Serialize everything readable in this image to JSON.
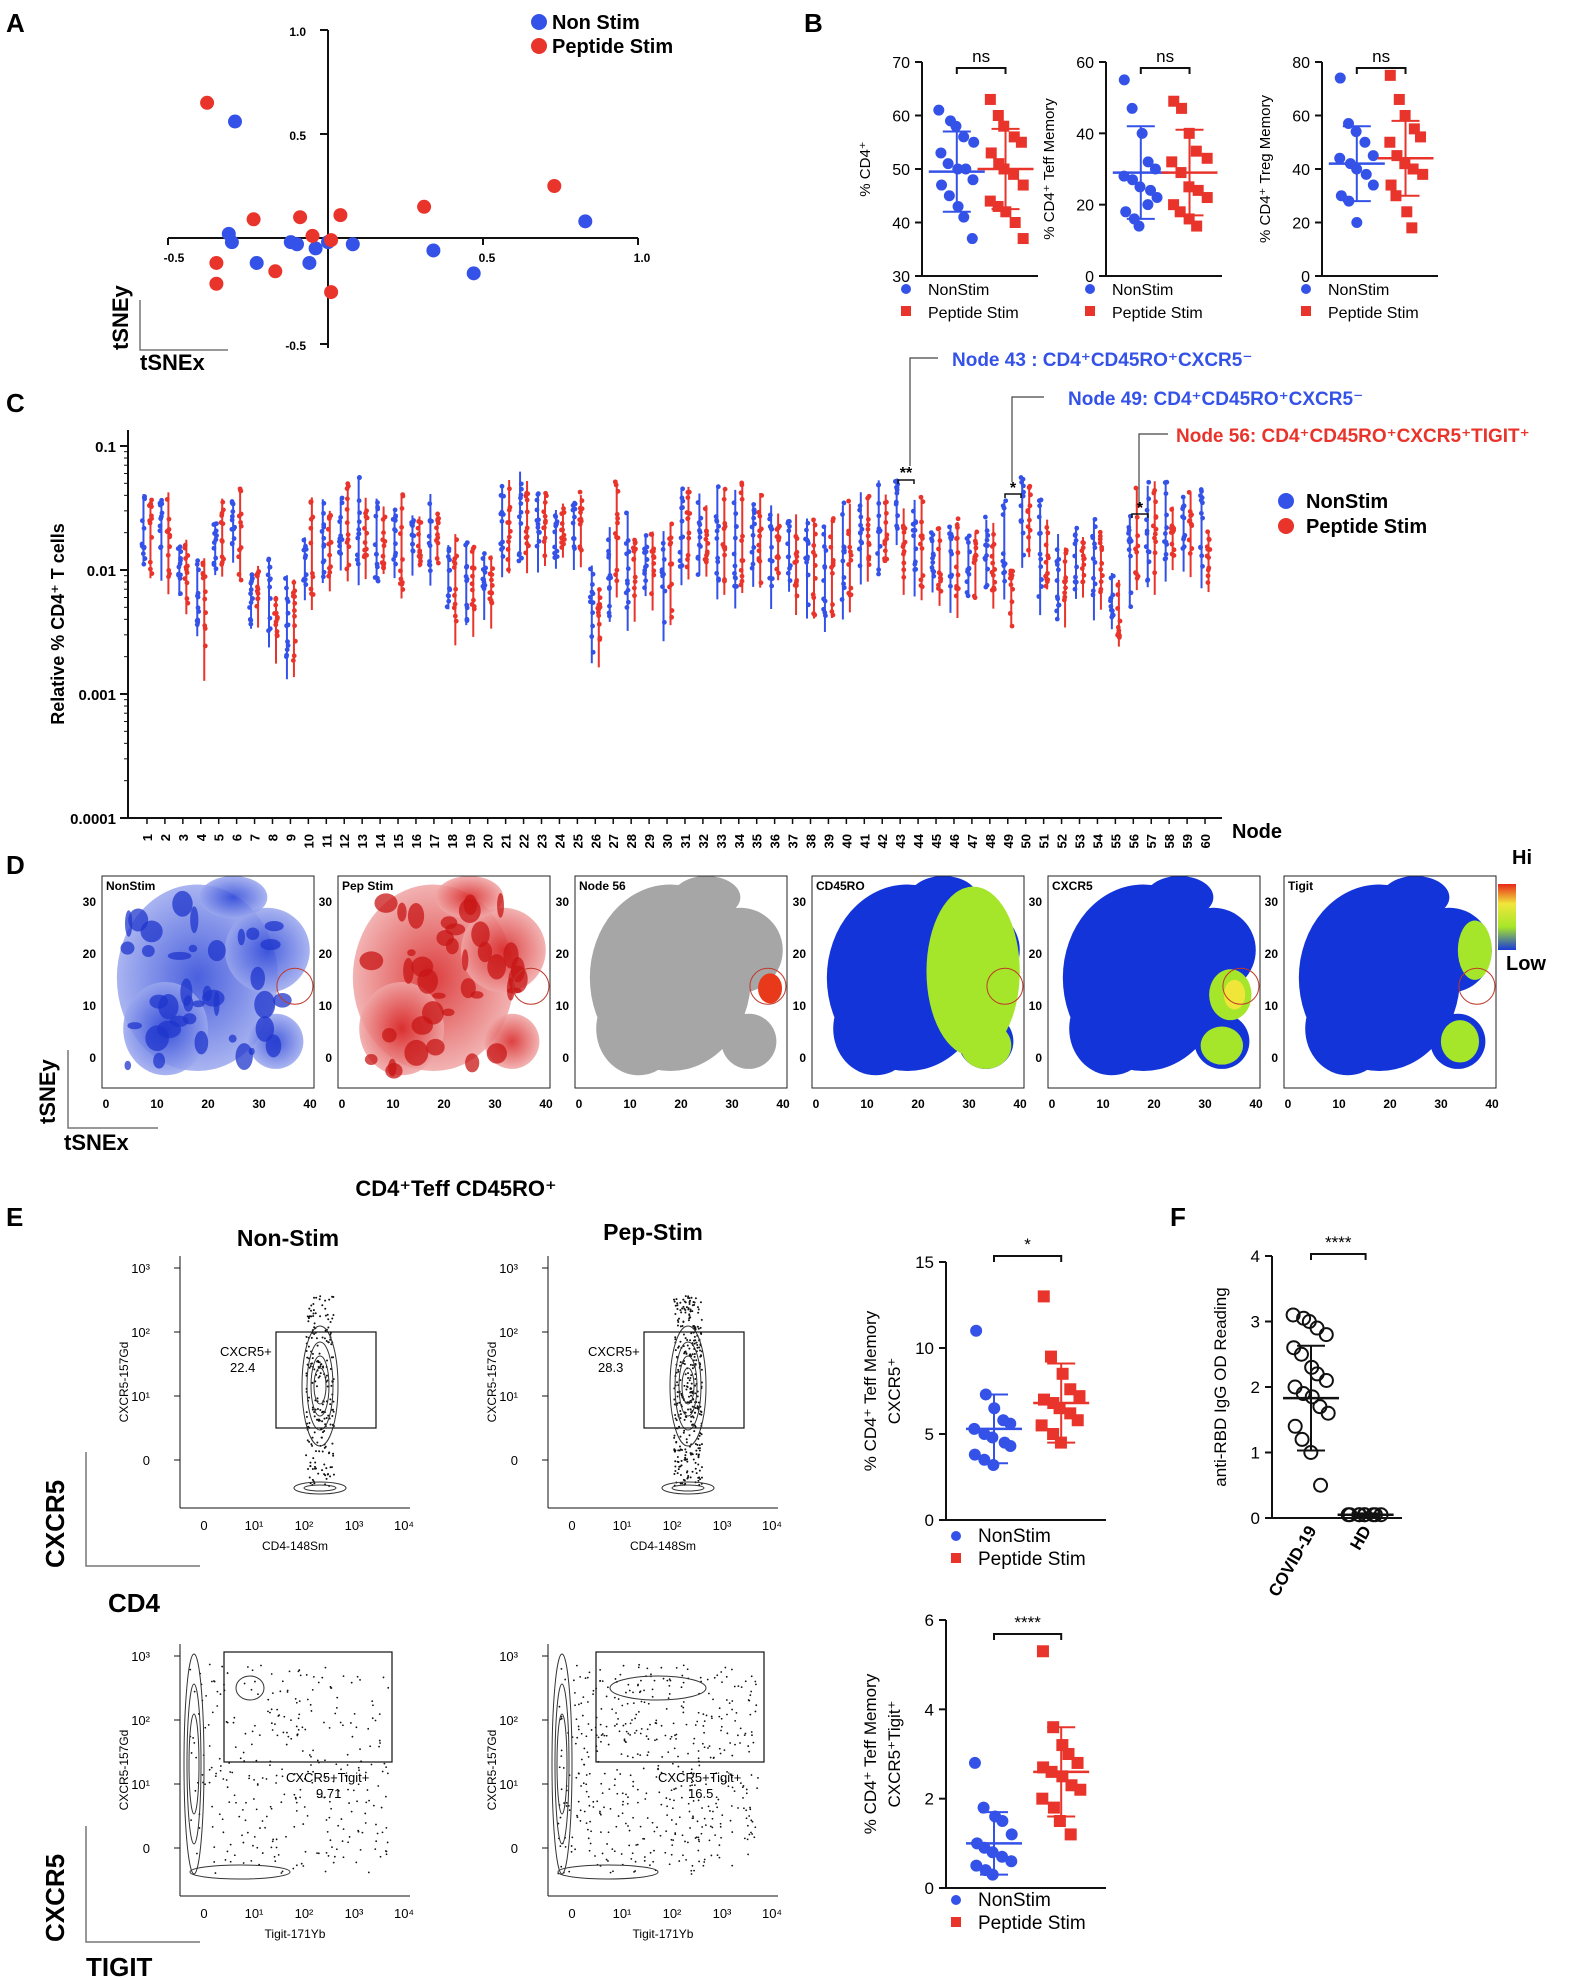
{
  "colors": {
    "blue": "#3452e8",
    "red": "#e8342b",
    "black": "#111111",
    "grey": "#a6a6a6",
    "mapBlue": "#1234d8",
    "mapGreen": "#a6e62a",
    "mapYellow": "#f0e63a",
    "mapRed": "#e83a1a"
  },
  "panels": {
    "A": "A",
    "B": "B",
    "C": "C",
    "D": "D",
    "E": "E",
    "F": "F"
  },
  "panelA": {
    "legend": [
      "Non Stim",
      "Peptide Stim"
    ],
    "axis_x_title": "tSNEx",
    "axis_y_title": "tSNEy",
    "tick_x": [
      "-0.5",
      "0.5",
      "1.0"
    ],
    "tick_y": [
      "1.0",
      "0.5",
      "-0.5"
    ]
  },
  "panelB": {
    "sig": "ns",
    "plots": [
      {
        "ylabel": "% CD4⁺",
        "ticks": [
          "70",
          "60",
          "50",
          "40",
          "30"
        ]
      },
      {
        "ylabel": "% CD4⁺ Teff Memory",
        "ticks": [
          "60",
          "40",
          "20",
          "0"
        ]
      },
      {
        "ylabel": "% CD4⁺ Treg Memory",
        "ticks": [
          "80",
          "60",
          "40",
          "20",
          "0"
        ]
      }
    ],
    "legend": [
      "NonStim",
      "Peptide Stim"
    ]
  },
  "panelC": {
    "ylabel": "Relative % CD4⁺ T cells",
    "yticks": [
      "0.1",
      "0.01",
      "0.001",
      "0.0001"
    ],
    "xlabel": "Node",
    "nodes": [
      "1",
      "2",
      "3",
      "4",
      "5",
      "6",
      "7",
      "8",
      "9",
      "10",
      "11",
      "12",
      "13",
      "14",
      "15",
      "16",
      "17",
      "18",
      "19",
      "20",
      "21",
      "22",
      "23",
      "24",
      "25",
      "26",
      "27",
      "28",
      "29",
      "30",
      "31",
      "32",
      "33",
      "34",
      "35",
      "36",
      "37",
      "38",
      "39",
      "40",
      "41",
      "42",
      "43",
      "44",
      "45",
      "46",
      "47",
      "48",
      "49",
      "50",
      "51",
      "52",
      "53",
      "54",
      "55",
      "56",
      "57",
      "58",
      "59",
      "60"
    ],
    "annotations": [
      "Node 43 :  CD4⁺CD45RO⁺CXCR5⁻",
      "Node 49: CD4⁺CD45RO⁺CXCR5⁻",
      "Node 56: CD4⁺CD45RO⁺CXCR5⁺TIGIT⁺"
    ],
    "sig": [
      "**",
      "*",
      "*"
    ],
    "legend": [
      "NonStim",
      "Peptide Stim"
    ]
  },
  "panelD": {
    "titles": [
      "NonStim",
      "Pep Stim",
      "Node 56",
      "CD45RO",
      "CXCR5",
      "Tigit"
    ],
    "xticks": [
      "0",
      "10",
      "20",
      "30",
      "40"
    ],
    "yticks": [
      "30",
      "20",
      "10",
      "0"
    ],
    "scale_hi": "Hi",
    "scale_low": "Low",
    "axis_x_title": "tSNEx",
    "axis_y_title": "tSNEy"
  },
  "panelE": {
    "header": "CD4⁺Teff CD45RO⁺",
    "col_titles": [
      "Non-Stim",
      "Pep-Stim"
    ],
    "gate_top": [
      {
        "name": "CXCR5+",
        "value": "22.4"
      },
      {
        "name": "CXCR5+",
        "value": "28.3"
      }
    ],
    "gate_bottom": [
      {
        "name": "CXCR5+Tigit+",
        "value": "9.71"
      },
      {
        "name": "CXCR5+Tigit+",
        "value": "16.5"
      }
    ],
    "top_axis_x": "CD4-148Sm",
    "top_axis_y": "CXCR5-157Gd",
    "bottom_axis_x": "Tigit-171Yb",
    "bottom_axis_y": "CXCR5-157Gd",
    "big_labels": [
      "CXCR5",
      "CD4",
      "CXCR5",
      "TIGIT"
    ],
    "flow_yticks": [
      "10³",
      "10²",
      "10¹",
      "0"
    ],
    "flow_xticks": [
      "0",
      "10¹",
      "10²",
      "10³",
      "10⁴"
    ],
    "scatter1": {
      "sig": "*",
      "ylabel_1": "% CD4⁺ Teff Memory",
      "ylabel_2": "CXCR5⁺",
      "ticks": [
        "15",
        "10",
        "5",
        "0"
      ]
    },
    "scatter2": {
      "sig": "****",
      "ylabel_1": "% CD4⁺ Teff Memory",
      "ylabel_2": "CXCR5⁺Tigit⁺",
      "ticks": [
        "6",
        "4",
        "2",
        "0"
      ]
    },
    "legend": [
      "NonStim",
      "Peptide Stim"
    ]
  },
  "panelF": {
    "ylabel": "anti-RBD IgG OD Reading",
    "ticks": [
      "4",
      "3",
      "2",
      "1",
      "0"
    ],
    "categories": [
      "COVID-19",
      "HD"
    ],
    "sig": "****"
  },
  "chart_data": [
    {
      "type": "scatter",
      "title": "A",
      "xlabel": "tSNEx",
      "ylabel": "tSNEy",
      "xlim": [
        -0.5,
        1.0
      ],
      "ylim": [
        -0.5,
        1.0
      ],
      "series": [
        {
          "name": "Non Stim",
          "x": [
            -0.3,
            -0.32,
            -0.31,
            -0.23,
            -0.12,
            -0.1,
            -0.06,
            -0.04,
            0.0,
            0.08,
            0.34,
            0.47,
            0.83
          ],
          "y": [
            0.56,
            0.02,
            -0.02,
            -0.12,
            -0.02,
            -0.03,
            -0.12,
            -0.05,
            -0.02,
            -0.03,
            -0.06,
            -0.17,
            0.08
          ]
        },
        {
          "name": "Peptide Stim",
          "x": [
            -0.39,
            -0.36,
            -0.36,
            -0.24,
            -0.17,
            -0.09,
            -0.05,
            0.01,
            0.01,
            0.04,
            0.31,
            0.73
          ],
          "y": [
            0.65,
            -0.12,
            -0.22,
            0.09,
            -0.16,
            0.1,
            0.01,
            -0.01,
            -0.26,
            0.11,
            0.15,
            0.25
          ]
        }
      ]
    },
    {
      "type": "scatter",
      "title": "B1",
      "ylabel": "% CD4⁺",
      "ylim": [
        30,
        70
      ],
      "categories": [
        "NonStim",
        "Peptide Stim"
      ],
      "mean": [
        49.5,
        50
      ],
      "sd": [
        7.5,
        7.5
      ],
      "series": [
        {
          "name": "NonStim",
          "values": [
            61,
            59,
            58,
            56,
            55,
            53,
            51,
            50,
            50,
            48,
            47,
            45,
            43,
            41,
            37
          ]
        },
        {
          "name": "Peptide Stim",
          "values": [
            63,
            60,
            58,
            56,
            55,
            53,
            51,
            50,
            49,
            47,
            44,
            43,
            42,
            40,
            37
          ]
        }
      ]
    },
    {
      "type": "scatter",
      "title": "B2",
      "ylabel": "% CD4⁺ Teff Memory",
      "ylim": [
        0,
        60
      ],
      "categories": [
        "NonStim",
        "Peptide Stim"
      ],
      "mean": [
        29,
        29
      ],
      "sd": [
        13,
        12
      ],
      "series": [
        {
          "name": "NonStim",
          "values": [
            55,
            47,
            40,
            32,
            30,
            28,
            27,
            25,
            24,
            22,
            18,
            16,
            14,
            20
          ]
        },
        {
          "name": "Peptide Stim",
          "values": [
            49,
            47,
            40,
            35,
            33,
            32,
            29,
            25,
            24,
            22,
            20,
            18,
            16,
            14
          ]
        }
      ]
    },
    {
      "type": "scatter",
      "title": "B3",
      "ylabel": "% CD4⁺ Treg Memory",
      "ylim": [
        0,
        80
      ],
      "categories": [
        "NonStim",
        "Peptide Stim"
      ],
      "mean": [
        42,
        44
      ],
      "sd": [
        14,
        14
      ],
      "series": [
        {
          "name": "NonStim",
          "values": [
            74,
            57,
            54,
            50,
            45,
            44,
            42,
            40,
            38,
            34,
            30,
            28,
            20
          ]
        },
        {
          "name": "Peptide Stim",
          "values": [
            75,
            66,
            60,
            55,
            52,
            50,
            45,
            42,
            40,
            38,
            34,
            30,
            24,
            18
          ]
        }
      ]
    },
    {
      "type": "scatter",
      "title": "E1",
      "ylabel": "% CD4⁺ Teff Memory CXCR5⁺",
      "ylim": [
        0,
        15
      ],
      "categories": [
        "NonStim",
        "Peptide Stim"
      ],
      "mean": [
        5.3,
        6.8
      ],
      "sd": [
        2.0,
        2.3
      ],
      "series": [
        {
          "name": "NonStim",
          "values": [
            11,
            7.3,
            6.5,
            5.8,
            5.6,
            5.3,
            5.0,
            4.8,
            4.5,
            4.3,
            3.8,
            3.5,
            3.2
          ]
        },
        {
          "name": "Peptide Stim",
          "values": [
            13,
            9.5,
            8.5,
            7.6,
            7.2,
            7.0,
            6.8,
            6.5,
            6.2,
            5.8,
            5.5,
            5.0,
            4.5
          ]
        }
      ]
    },
    {
      "type": "scatter",
      "title": "E2",
      "ylabel": "% CD4⁺ Teff Memory CXCR5⁺Tigit⁺",
      "ylim": [
        0,
        6
      ],
      "categories": [
        "NonStim",
        "Peptide Stim"
      ],
      "mean": [
        1.0,
        2.6
      ],
      "sd": [
        0.7,
        1.0
      ],
      "series": [
        {
          "name": "NonStim",
          "values": [
            2.8,
            1.8,
            1.6,
            1.5,
            1.2,
            1.0,
            0.9,
            0.8,
            0.7,
            0.6,
            0.5,
            0.4,
            0.3
          ]
        },
        {
          "name": "Peptide Stim",
          "values": [
            5.3,
            3.6,
            3.2,
            3.0,
            2.8,
            2.7,
            2.6,
            2.5,
            2.3,
            2.2,
            2.0,
            1.8,
            1.5,
            1.2
          ]
        }
      ]
    },
    {
      "type": "scatter",
      "title": "F",
      "ylabel": "anti-RBD IgG OD Reading",
      "ylim": [
        0,
        4
      ],
      "categories": [
        "COVID-19",
        "HD"
      ],
      "mean": [
        1.83,
        0.05
      ],
      "sd": [
        0.8,
        0.02
      ],
      "series": [
        {
          "name": "COVID-19",
          "values": [
            3.1,
            3.05,
            3.0,
            2.9,
            2.8,
            2.6,
            2.5,
            2.3,
            2.2,
            2.1,
            2.0,
            1.9,
            1.85,
            1.7,
            1.6,
            1.4,
            1.2,
            1.0,
            0.5
          ]
        },
        {
          "name": "HD",
          "values": [
            0.05,
            0.05,
            0.05,
            0.05,
            0.05,
            0.05,
            0.05,
            0.05,
            0.05
          ]
        }
      ]
    },
    {
      "type": "scatter",
      "title": "C",
      "xlabel": "Node",
      "ylabel": "Relative % CD4⁺ T cells",
      "yscale": "log",
      "ylim": [
        0.0001,
        0.15
      ],
      "series": [
        {
          "name": "NonStim",
          "medians": [
            0.022,
            0.021,
            0.01,
            0.006,
            0.016,
            0.023,
            0.006,
            0.006,
            0.004,
            0.012,
            0.018,
            0.023,
            0.024,
            0.018,
            0.017,
            0.018,
            0.02,
            0.009,
            0.008,
            0.009,
            0.023,
            0.028,
            0.024,
            0.02,
            0.02,
            0.005,
            0.01,
            0.012,
            0.012,
            0.009,
            0.022,
            0.02,
            0.02,
            0.018,
            0.019,
            0.015,
            0.014,
            0.012,
            0.01,
            0.014,
            0.02,
            0.023,
            0.03,
            0.018,
            0.013,
            0.012,
            0.011,
            0.014,
            0.016,
            0.028,
            0.015,
            0.009,
            0.012,
            0.012,
            0.006,
            0.012,
            0.02,
            0.022,
            0.022,
            0.021
          ]
        },
        {
          "name": "Peptide Stim",
          "medians": [
            0.018,
            0.02,
            0.009,
            0.005,
            0.02,
            0.02,
            0.007,
            0.004,
            0.004,
            0.016,
            0.016,
            0.022,
            0.022,
            0.018,
            0.017,
            0.017,
            0.018,
            0.008,
            0.008,
            0.008,
            0.024,
            0.026,
            0.023,
            0.021,
            0.022,
            0.004,
            0.02,
            0.01,
            0.011,
            0.01,
            0.023,
            0.019,
            0.019,
            0.019,
            0.018,
            0.016,
            0.013,
            0.011,
            0.011,
            0.015,
            0.021,
            0.022,
            0.017,
            0.017,
            0.012,
            0.011,
            0.011,
            0.013,
            0.006,
            0.026,
            0.014,
            0.009,
            0.012,
            0.011,
            0.005,
            0.02,
            0.021,
            0.021,
            0.021,
            0.012
          ]
        }
      ]
    }
  ]
}
